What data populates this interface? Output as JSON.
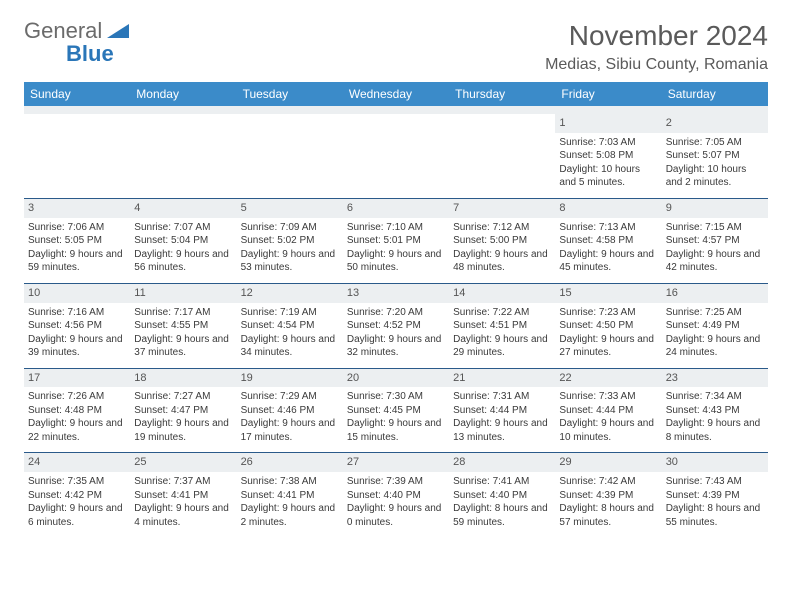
{
  "logo": {
    "word1": "General",
    "word2": "Blue"
  },
  "title": "November 2024",
  "location": "Medias, Sibiu County, Romania",
  "header_bg": "#3b8bc9",
  "daynum_bg": "#eceff1",
  "week_border": "#2a5a8a",
  "day_names": [
    "Sunday",
    "Monday",
    "Tuesday",
    "Wednesday",
    "Thursday",
    "Friday",
    "Saturday"
  ],
  "columns": 7,
  "weeks": [
    [
      null,
      null,
      null,
      null,
      null,
      {
        "n": "1",
        "sr": "7:03 AM",
        "ss": "5:08 PM",
        "dl": "10 hours and 5 minutes."
      },
      {
        "n": "2",
        "sr": "7:05 AM",
        "ss": "5:07 PM",
        "dl": "10 hours and 2 minutes."
      }
    ],
    [
      {
        "n": "3",
        "sr": "7:06 AM",
        "ss": "5:05 PM",
        "dl": "9 hours and 59 minutes."
      },
      {
        "n": "4",
        "sr": "7:07 AM",
        "ss": "5:04 PM",
        "dl": "9 hours and 56 minutes."
      },
      {
        "n": "5",
        "sr": "7:09 AM",
        "ss": "5:02 PM",
        "dl": "9 hours and 53 minutes."
      },
      {
        "n": "6",
        "sr": "7:10 AM",
        "ss": "5:01 PM",
        "dl": "9 hours and 50 minutes."
      },
      {
        "n": "7",
        "sr": "7:12 AM",
        "ss": "5:00 PM",
        "dl": "9 hours and 48 minutes."
      },
      {
        "n": "8",
        "sr": "7:13 AM",
        "ss": "4:58 PM",
        "dl": "9 hours and 45 minutes."
      },
      {
        "n": "9",
        "sr": "7:15 AM",
        "ss": "4:57 PM",
        "dl": "9 hours and 42 minutes."
      }
    ],
    [
      {
        "n": "10",
        "sr": "7:16 AM",
        "ss": "4:56 PM",
        "dl": "9 hours and 39 minutes."
      },
      {
        "n": "11",
        "sr": "7:17 AM",
        "ss": "4:55 PM",
        "dl": "9 hours and 37 minutes."
      },
      {
        "n": "12",
        "sr": "7:19 AM",
        "ss": "4:54 PM",
        "dl": "9 hours and 34 minutes."
      },
      {
        "n": "13",
        "sr": "7:20 AM",
        "ss": "4:52 PM",
        "dl": "9 hours and 32 minutes."
      },
      {
        "n": "14",
        "sr": "7:22 AM",
        "ss": "4:51 PM",
        "dl": "9 hours and 29 minutes."
      },
      {
        "n": "15",
        "sr": "7:23 AM",
        "ss": "4:50 PM",
        "dl": "9 hours and 27 minutes."
      },
      {
        "n": "16",
        "sr": "7:25 AM",
        "ss": "4:49 PM",
        "dl": "9 hours and 24 minutes."
      }
    ],
    [
      {
        "n": "17",
        "sr": "7:26 AM",
        "ss": "4:48 PM",
        "dl": "9 hours and 22 minutes."
      },
      {
        "n": "18",
        "sr": "7:27 AM",
        "ss": "4:47 PM",
        "dl": "9 hours and 19 minutes."
      },
      {
        "n": "19",
        "sr": "7:29 AM",
        "ss": "4:46 PM",
        "dl": "9 hours and 17 minutes."
      },
      {
        "n": "20",
        "sr": "7:30 AM",
        "ss": "4:45 PM",
        "dl": "9 hours and 15 minutes."
      },
      {
        "n": "21",
        "sr": "7:31 AM",
        "ss": "4:44 PM",
        "dl": "9 hours and 13 minutes."
      },
      {
        "n": "22",
        "sr": "7:33 AM",
        "ss": "4:44 PM",
        "dl": "9 hours and 10 minutes."
      },
      {
        "n": "23",
        "sr": "7:34 AM",
        "ss": "4:43 PM",
        "dl": "9 hours and 8 minutes."
      }
    ],
    [
      {
        "n": "24",
        "sr": "7:35 AM",
        "ss": "4:42 PM",
        "dl": "9 hours and 6 minutes."
      },
      {
        "n": "25",
        "sr": "7:37 AM",
        "ss": "4:41 PM",
        "dl": "9 hours and 4 minutes."
      },
      {
        "n": "26",
        "sr": "7:38 AM",
        "ss": "4:41 PM",
        "dl": "9 hours and 2 minutes."
      },
      {
        "n": "27",
        "sr": "7:39 AM",
        "ss": "4:40 PM",
        "dl": "9 hours and 0 minutes."
      },
      {
        "n": "28",
        "sr": "7:41 AM",
        "ss": "4:40 PM",
        "dl": "8 hours and 59 minutes."
      },
      {
        "n": "29",
        "sr": "7:42 AM",
        "ss": "4:39 PM",
        "dl": "8 hours and 57 minutes."
      },
      {
        "n": "30",
        "sr": "7:43 AM",
        "ss": "4:39 PM",
        "dl": "8 hours and 55 minutes."
      }
    ]
  ],
  "labels": {
    "sunrise": "Sunrise:",
    "sunset": "Sunset:",
    "daylight": "Daylight:"
  }
}
